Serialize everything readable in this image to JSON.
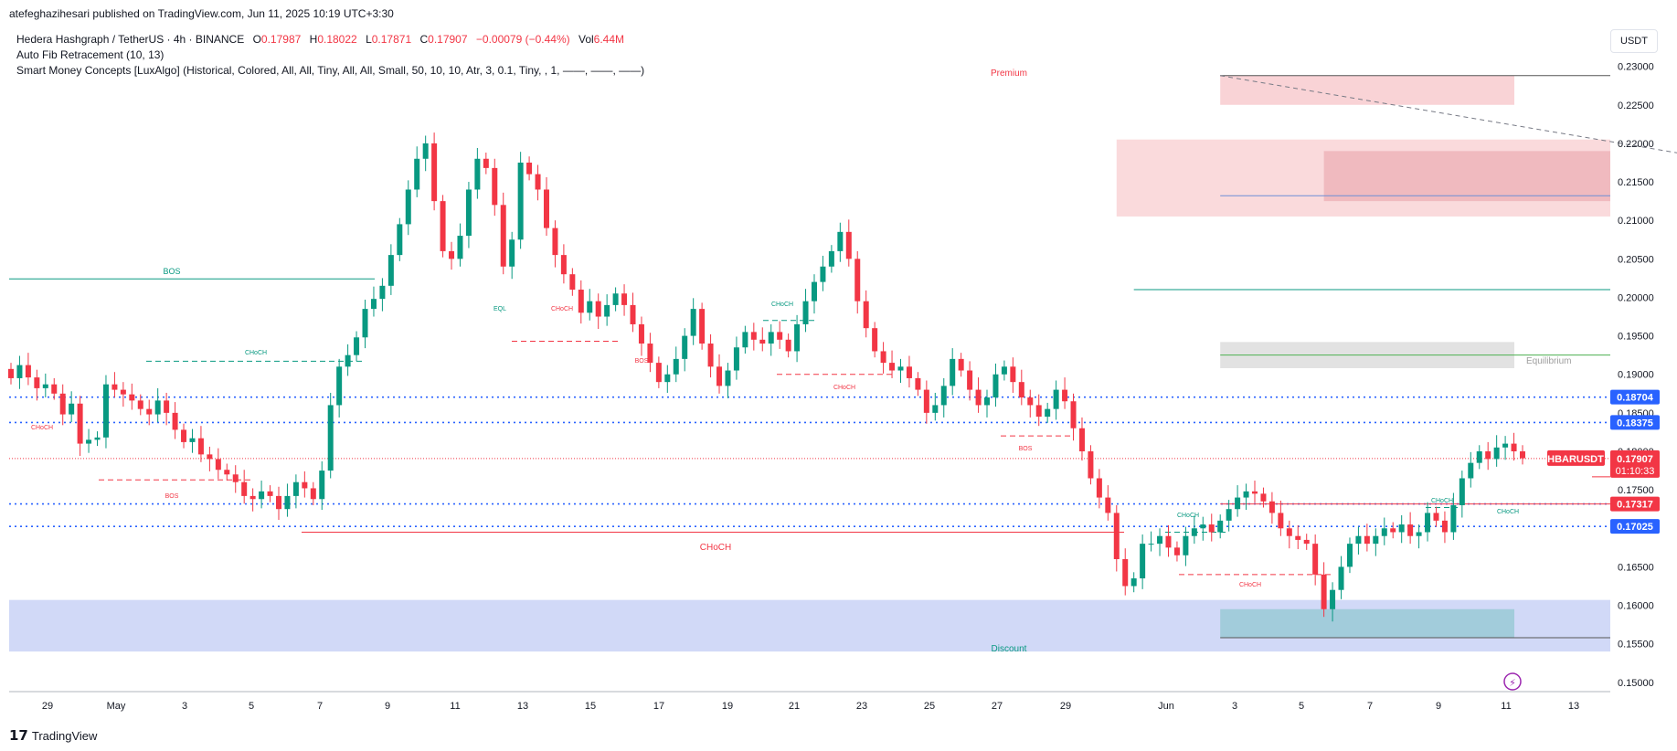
{
  "header": {
    "published_text": "atefeghazihesari published on TradingView.com, Jun 11, 2025 10:19 UTC+3:30"
  },
  "legend": {
    "symbol_line": "Hedera Hashgraph / TetherUS · 4h · BINANCE",
    "open_label": "O",
    "open_value": "0.17987",
    "high_label": "H",
    "high_value": "0.18022",
    "low_label": "L",
    "low_value": "0.17871",
    "close_label": "C",
    "close_value": "0.17907",
    "change_value": "−0.00079 (−0.44%)",
    "vol_label": "Vol",
    "vol_value": "6.44M",
    "indicator1": "Auto Fib Retracement (10, 13)",
    "indicator2": "Smart Money Concepts [LuxAlgo] (Historical, Colored, All, All, Tiny, All, All, Small, 50, 10, 10, Atr, 3, 0.1, Tiny, , 1, ——, ——, ——)"
  },
  "currency_button": "USDT",
  "footer": {
    "logo_text": "TradingView",
    "logo_icon": "tradingview-logo-icon"
  },
  "colors": {
    "bull": "#089981",
    "bear": "#f23645",
    "blue_dotted": "#2962ff",
    "premium_zone": "#f7c1c5",
    "discount_zone": "#c5cff5",
    "equilibrium_zone": "#cfcfcf"
  },
  "chart_data": {
    "type": "candlestick",
    "symbol": "HBARUSDT",
    "timeframe": "4h",
    "y_range": [
      0.1482,
      0.2315
    ],
    "y_ticks": [
      "0.23000",
      "0.22500",
      "0.22000",
      "0.21500",
      "0.21000",
      "0.20500",
      "0.20000",
      "0.19500",
      "0.19000",
      "0.18500",
      "0.18000",
      "0.17500",
      "0.17000",
      "0.16500",
      "0.16000",
      "0.15500",
      "0.15000"
    ],
    "x_ticks": [
      "29",
      "May",
      "3",
      "5",
      "7",
      "9",
      "11",
      "13",
      "15",
      "17",
      "19",
      "21",
      "23",
      "25",
      "27",
      "29",
      "Jun",
      "3",
      "5",
      "7",
      "9",
      "11",
      "13"
    ],
    "price_labels": [
      {
        "text": "0.18704",
        "value": 0.18704,
        "color": "#2962ff"
      },
      {
        "text": "0.18375",
        "value": 0.18375,
        "color": "#2962ff"
      },
      {
        "text": "0.17317",
        "value": 0.17317,
        "color": "#f23645"
      },
      {
        "text": "0.17025",
        "value": 0.17025,
        "color": "#2962ff"
      }
    ],
    "current_price": {
      "symbol": "HBARUSDT",
      "price": "0.17907",
      "countdown": "01:10:33",
      "value": 0.17907
    },
    "zone_labels": {
      "premium": "Premium",
      "equilibrium": "Equilibrium",
      "discount": "Discount"
    },
    "structure_labels": [
      "BOS",
      "CHoCH",
      "CHoCH",
      "BOS",
      "EQL",
      "CHoCH",
      "BOS",
      "CHoCH",
      "CHoCH",
      "BOS",
      "CHoCH",
      "CHoCH",
      "CHoCH",
      "CHoCH",
      "CHoCH"
    ],
    "close_series": [
      0.1895,
      0.1912,
      0.1896,
      0.1882,
      0.1887,
      0.1875,
      0.1848,
      0.1862,
      0.181,
      0.1815,
      0.1818,
      0.1887,
      0.188,
      0.1874,
      0.1866,
      0.1855,
      0.1848,
      0.1866,
      0.185,
      0.1828,
      0.1812,
      0.1817,
      0.1796,
      0.179,
      0.1776,
      0.177,
      0.176,
      0.1742,
      0.1738,
      0.1748,
      0.1742,
      0.1725,
      0.1742,
      0.176,
      0.1752,
      0.1738,
      0.1775,
      0.186,
      0.191,
      0.1925,
      0.1948,
      0.1985,
      0.1998,
      0.2015,
      0.2055,
      0.2095,
      0.214,
      0.218,
      0.22,
      0.2125,
      0.206,
      0.205,
      0.208,
      0.214,
      0.218,
      0.2168,
      0.212,
      0.204,
      0.2075,
      0.2175,
      0.216,
      0.214,
      0.209,
      0.2055,
      0.203,
      0.201,
      0.198,
      0.1995,
      0.1975,
      0.199,
      0.2005,
      0.199,
      0.1965,
      0.194,
      0.1915,
      0.189,
      0.19,
      0.192,
      0.195,
      0.1985,
      0.194,
      0.191,
      0.1885,
      0.1905,
      0.1935,
      0.1955,
      0.1945,
      0.194,
      0.1955,
      0.1945,
      0.193,
      0.1965,
      0.1995,
      0.202,
      0.204,
      0.206,
      0.2085,
      0.205,
      0.1995,
      0.196,
      0.193,
      0.1915,
      0.1905,
      0.191,
      0.1895,
      0.188,
      0.185,
      0.186,
      0.1885,
      0.192,
      0.1905,
      0.188,
      0.186,
      0.187,
      0.19,
      0.191,
      0.189,
      0.187,
      0.186,
      0.1845,
      0.1855,
      0.188,
      0.1865,
      0.183,
      0.18,
      0.1765,
      0.174,
      0.172,
      0.166,
      0.1625,
      0.1635,
      0.168,
      0.168,
      0.169,
      0.1675,
      0.1665,
      0.169,
      0.17,
      0.1705,
      0.1695,
      0.171,
      0.1725,
      0.174,
      0.1748,
      0.1745,
      0.1735,
      0.172,
      0.17,
      0.169,
      0.1685,
      0.168,
      0.164,
      0.1595,
      0.162,
      0.165,
      0.168,
      0.169,
      0.168,
      0.169,
      0.17,
      0.1695,
      0.1705,
      0.169,
      0.1695,
      0.172,
      0.171,
      0.1695,
      0.173,
      0.1765,
      0.1785,
      0.18,
      0.179,
      0.1805,
      0.181,
      0.18,
      0.1791
    ]
  }
}
